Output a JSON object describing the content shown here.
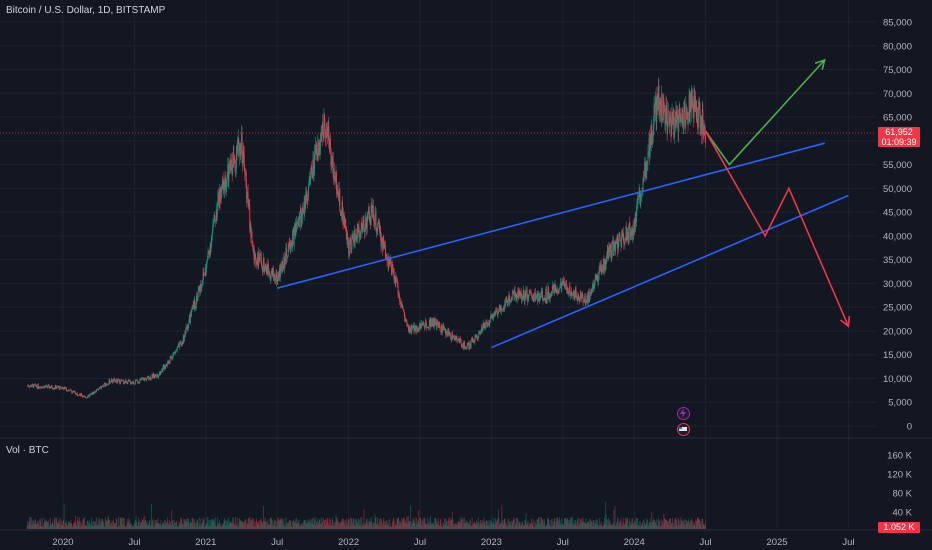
{
  "header": {
    "title": "Bitcoin / U.S. Dollar, 1D, BITSTAMP"
  },
  "price_axis": {
    "ticks": [
      "85,000",
      "80,000",
      "75,000",
      "70,000",
      "65,000",
      "60,000",
      "55,000",
      "50,000",
      "45,000",
      "40,000",
      "35,000",
      "30,000",
      "25,000",
      "20,000",
      "15,000",
      "10,000",
      "5,000",
      "0"
    ],
    "tick_values": [
      85000,
      80000,
      75000,
      70000,
      65000,
      60000,
      55000,
      50000,
      45000,
      40000,
      35000,
      30000,
      25000,
      20000,
      15000,
      10000,
      5000,
      0
    ]
  },
  "current_price": {
    "value": "61,952",
    "countdown": "01:09:39",
    "color": "#f23645"
  },
  "volume_pane": {
    "label": "Vol · BTC",
    "ticks": [
      "160 K",
      "120 K",
      "80 K",
      "40 K"
    ],
    "current": "1.052 K"
  },
  "time_axis": {
    "labels": [
      "2020",
      "Jul",
      "2021",
      "Jul",
      "2022",
      "Jul",
      "2023",
      "Jul",
      "2024",
      "Jul",
      "2025",
      "Jul"
    ]
  },
  "colors": {
    "background": "#131722",
    "up_candle": "#089981",
    "down_candle": "#f23645",
    "trendline": "#2962ff",
    "bull_arrow": "#4caf50",
    "bear_arrow": "#f23645",
    "text": "#b2b5be"
  },
  "events": [
    {
      "icon": "lightning-icon",
      "color": "#9c27b0"
    },
    {
      "icon": "flag-icon",
      "color": "#f23645"
    }
  ],
  "chart_data": {
    "type": "candlestick",
    "title": "Bitcoin / U.S. Dollar, 1D, BITSTAMP",
    "ylim": [
      0,
      85000
    ],
    "x": [
      "2019-10",
      "2020-01",
      "2020-03",
      "2020-05",
      "2020-07",
      "2020-09",
      "2020-11",
      "2021-01",
      "2021-02",
      "2021-04",
      "2021-05",
      "2021-07",
      "2021-09",
      "2021-11",
      "2022-01",
      "2022-03",
      "2022-05",
      "2022-06",
      "2022-08",
      "2022-11",
      "2023-01",
      "2023-03",
      "2023-05",
      "2023-07",
      "2023-09",
      "2023-11",
      "2024-01",
      "2024-03",
      "2024-04",
      "2024-06",
      "2024-07"
    ],
    "close": [
      8500,
      8000,
      6000,
      9500,
      9200,
      10800,
      17500,
      33000,
      47000,
      60000,
      36000,
      31000,
      44000,
      64000,
      38000,
      45000,
      30000,
      20000,
      22000,
      16500,
      23000,
      28000,
      27000,
      29500,
      26500,
      37000,
      42000,
      69000,
      63000,
      68000,
      61952
    ],
    "trendlines": [
      {
        "from": [
          "2021-07",
          29000
        ],
        "to": [
          "2025-05",
          59500
        ]
      },
      {
        "from": [
          "2023-01",
          16500
        ],
        "to": [
          "2025-07",
          48500
        ]
      }
    ],
    "projections": [
      {
        "name": "",
        "points": [
          [
            "2024-07",
            62000
          ],
          [
            "2024-09",
            55000
          ],
          [
            "2025-05",
            77000
          ]
        ]
      },
      {
        "name": "",
        "points": [
          [
            "2024-07",
            62000
          ],
          [
            "2024-12",
            40000
          ],
          [
            "2025-02",
            50000
          ],
          [
            "2025-07",
            21000
          ]
        ]
      }
    ]
  }
}
